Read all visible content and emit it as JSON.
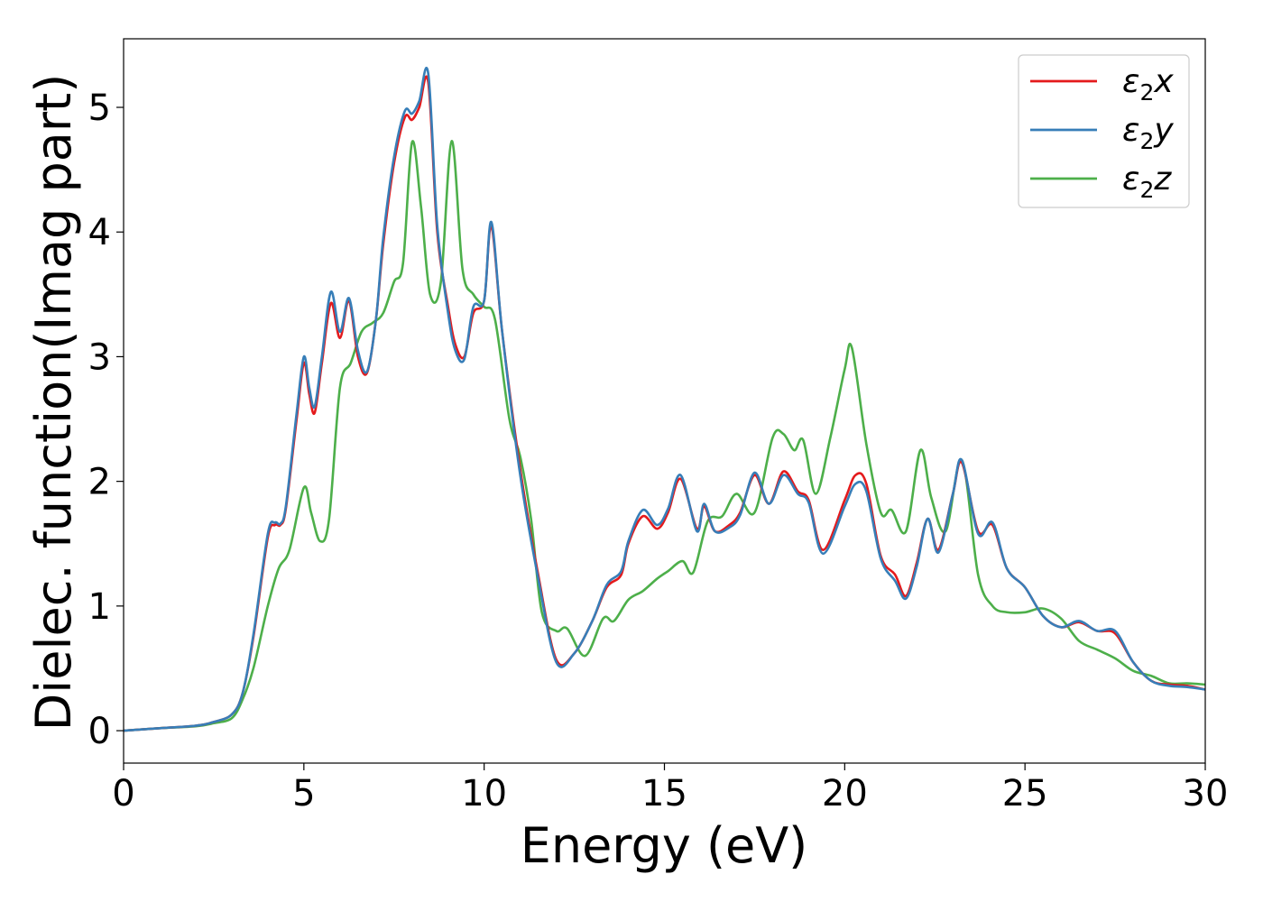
{
  "chart_data": {
    "type": "line",
    "title": "",
    "xlabel": "Energy (eV)",
    "ylabel": "Dielec. function(Imag part)",
    "xlim": [
      0,
      30
    ],
    "ylim": [
      -0.26,
      5.55
    ],
    "xticks": [
      0,
      5,
      10,
      15,
      20,
      25,
      30
    ],
    "yticks": [
      0,
      1,
      2,
      3,
      4,
      5
    ],
    "grid": false,
    "legend": "top-right",
    "series": [
      {
        "name": "ε₂x",
        "label_base": "ε",
        "label_sub": "2",
        "label_axis": "x",
        "color": "#e41a1c",
        "x": [
          0,
          1,
          2,
          2.5,
          3,
          3.3,
          3.6,
          4.0,
          4.2,
          4.35,
          4.5,
          4.8,
          5.0,
          5.15,
          5.3,
          5.5,
          5.75,
          6.0,
          6.25,
          6.5,
          6.75,
          7.0,
          7.2,
          7.5,
          7.8,
          8.0,
          8.2,
          8.45,
          8.7,
          9.0,
          9.2,
          9.45,
          9.7,
          10.0,
          10.2,
          10.5,
          11.0,
          11.5,
          12.0,
          12.5,
          13.0,
          13.4,
          13.8,
          14.0,
          14.4,
          14.8,
          15.1,
          15.45,
          15.9,
          16.1,
          16.4,
          16.8,
          17.1,
          17.5,
          17.9,
          18.3,
          18.7,
          19.0,
          19.4,
          20.0,
          20.3,
          20.6,
          21.0,
          21.4,
          21.7,
          22.0,
          22.3,
          22.6,
          23.0,
          23.25,
          23.7,
          24.1,
          24.5,
          25.0,
          25.5,
          26.0,
          26.5,
          27.0,
          27.5,
          28.0,
          28.5,
          29.0,
          29.5,
          30.0
        ],
        "y": [
          0,
          0.02,
          0.04,
          0.07,
          0.13,
          0.3,
          0.75,
          1.55,
          1.65,
          1.65,
          1.78,
          2.5,
          2.95,
          2.7,
          2.55,
          2.95,
          3.43,
          3.15,
          3.45,
          3.0,
          2.87,
          3.3,
          3.9,
          4.55,
          4.92,
          4.9,
          5.0,
          5.2,
          4.0,
          3.4,
          3.1,
          3.0,
          3.35,
          3.45,
          4.05,
          3.2,
          2.1,
          1.25,
          0.57,
          0.62,
          0.88,
          1.15,
          1.25,
          1.5,
          1.72,
          1.62,
          1.75,
          2.02,
          1.62,
          1.8,
          1.6,
          1.65,
          1.75,
          2.05,
          1.82,
          2.08,
          1.92,
          1.85,
          1.45,
          1.85,
          2.05,
          1.98,
          1.4,
          1.25,
          1.08,
          1.35,
          1.7,
          1.45,
          1.9,
          2.15,
          1.6,
          1.65,
          1.3,
          1.15,
          0.92,
          0.83,
          0.87,
          0.8,
          0.78,
          0.55,
          0.4,
          0.37,
          0.36,
          0.33
        ]
      },
      {
        "name": "ε₂y",
        "label_base": "ε",
        "label_sub": "2",
        "label_axis": "y",
        "color": "#377eb8",
        "x": [
          0,
          1,
          2,
          2.5,
          3,
          3.3,
          3.6,
          4.0,
          4.2,
          4.35,
          4.5,
          4.8,
          5.0,
          5.15,
          5.3,
          5.5,
          5.75,
          6.0,
          6.25,
          6.5,
          6.75,
          7.0,
          7.2,
          7.5,
          7.8,
          8.0,
          8.2,
          8.45,
          8.7,
          9.0,
          9.2,
          9.45,
          9.7,
          10.0,
          10.2,
          10.5,
          11.0,
          11.5,
          12.0,
          12.5,
          13.0,
          13.4,
          13.8,
          14.0,
          14.4,
          14.8,
          15.1,
          15.45,
          15.9,
          16.1,
          16.4,
          16.8,
          17.1,
          17.5,
          17.9,
          18.3,
          18.7,
          19.0,
          19.4,
          20.0,
          20.3,
          20.6,
          21.0,
          21.4,
          21.7,
          22.0,
          22.3,
          22.6,
          23.0,
          23.25,
          23.7,
          24.1,
          24.5,
          25.0,
          25.5,
          26.0,
          26.5,
          27.0,
          27.5,
          28.0,
          28.5,
          29.0,
          29.5,
          30.0
        ],
        "y": [
          0,
          0.02,
          0.04,
          0.07,
          0.13,
          0.3,
          0.77,
          1.58,
          1.67,
          1.66,
          1.8,
          2.55,
          3.0,
          2.75,
          2.6,
          3.0,
          3.52,
          3.2,
          3.47,
          3.05,
          2.88,
          3.3,
          3.95,
          4.6,
          4.97,
          4.95,
          5.05,
          5.27,
          4.05,
          3.35,
          3.05,
          2.98,
          3.4,
          3.45,
          4.08,
          3.2,
          2.05,
          1.22,
          0.55,
          0.62,
          0.88,
          1.17,
          1.28,
          1.52,
          1.77,
          1.65,
          1.78,
          2.05,
          1.6,
          1.82,
          1.6,
          1.63,
          1.73,
          2.07,
          1.82,
          2.05,
          1.9,
          1.83,
          1.42,
          1.8,
          1.98,
          1.92,
          1.38,
          1.2,
          1.06,
          1.32,
          1.7,
          1.43,
          1.9,
          2.17,
          1.58,
          1.67,
          1.3,
          1.15,
          0.92,
          0.83,
          0.88,
          0.8,
          0.8,
          0.55,
          0.4,
          0.36,
          0.35,
          0.33
        ]
      },
      {
        "name": "ε₂z",
        "label_base": "ε",
        "label_sub": "2",
        "label_axis": "z",
        "color": "#4daf4a",
        "x": [
          0,
          1,
          2,
          2.5,
          3,
          3.3,
          3.6,
          4.0,
          4.3,
          4.6,
          5.0,
          5.2,
          5.45,
          5.7,
          6.0,
          6.3,
          6.6,
          6.9,
          7.2,
          7.5,
          7.75,
          8.0,
          8.25,
          8.5,
          8.8,
          9.1,
          9.4,
          9.7,
          10.0,
          10.3,
          10.7,
          11.0,
          11.3,
          11.6,
          12.0,
          12.3,
          12.8,
          13.3,
          13.6,
          14.0,
          14.4,
          14.8,
          15.1,
          15.5,
          15.8,
          16.2,
          16.6,
          17.0,
          17.5,
          18.0,
          18.3,
          18.6,
          18.85,
          19.2,
          19.6,
          20.0,
          20.2,
          20.6,
          21.0,
          21.3,
          21.7,
          22.1,
          22.4,
          22.8,
          23.25,
          23.7,
          24.1,
          24.5,
          25.0,
          25.5,
          26.0,
          26.5,
          27.0,
          27.5,
          28.0,
          28.5,
          29.0,
          29.5,
          30.0
        ],
        "y": [
          0,
          0.02,
          0.035,
          0.06,
          0.1,
          0.25,
          0.5,
          1.0,
          1.3,
          1.45,
          1.95,
          1.75,
          1.52,
          1.7,
          2.75,
          2.95,
          3.2,
          3.27,
          3.35,
          3.6,
          3.75,
          4.72,
          4.2,
          3.5,
          3.6,
          4.73,
          3.7,
          3.5,
          3.4,
          3.3,
          2.5,
          2.2,
          1.7,
          0.95,
          0.8,
          0.82,
          0.6,
          0.9,
          0.88,
          1.05,
          1.12,
          1.22,
          1.28,
          1.36,
          1.27,
          1.68,
          1.72,
          1.9,
          1.75,
          2.35,
          2.38,
          2.25,
          2.33,
          1.9,
          2.35,
          2.9,
          3.07,
          2.3,
          1.75,
          1.77,
          1.6,
          2.25,
          1.87,
          1.6,
          2.17,
          1.25,
          1.0,
          0.95,
          0.95,
          0.98,
          0.9,
          0.72,
          0.65,
          0.58,
          0.48,
          0.44,
          0.38,
          0.38,
          0.37
        ]
      }
    ]
  }
}
